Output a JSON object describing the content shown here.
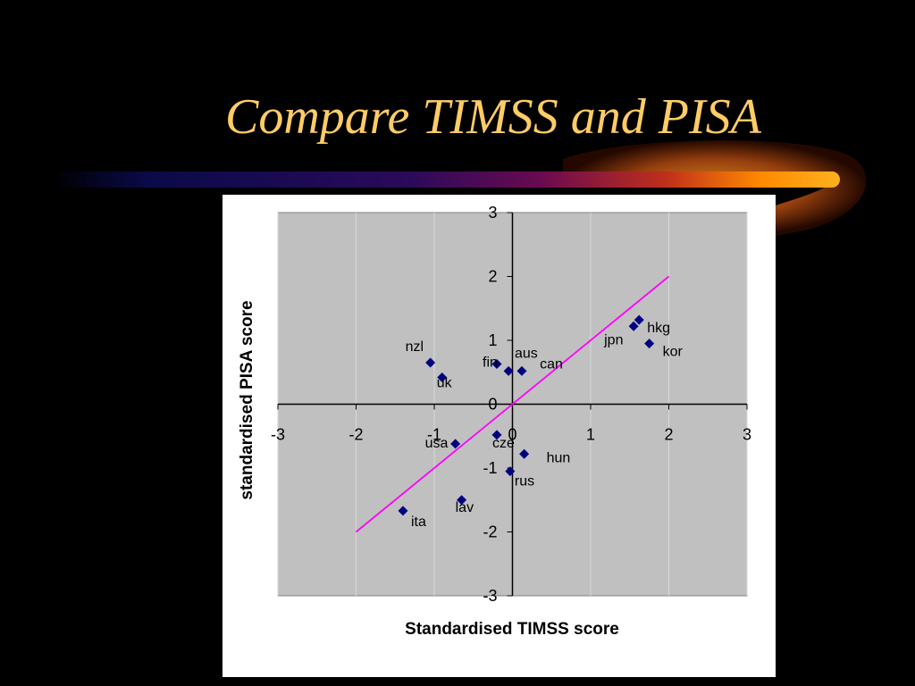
{
  "slide": {
    "title": "Compare TIMSS and PISA"
  },
  "colors": {
    "background": "#000000",
    "title": "#FFCC66",
    "plot_area": "#C0C0C0",
    "gridlines": "#D8D8D8",
    "points": "#000080",
    "reference_line": "#FF00FF"
  },
  "chart_data": {
    "type": "scatter",
    "xlabel": "Standardised TIMSS score",
    "ylabel": "standardised PISA score",
    "xlim": [
      -3,
      3
    ],
    "ylim": [
      -3,
      3
    ],
    "x_ticks": [
      "-3",
      "-2",
      "-1",
      "0",
      "1",
      "2",
      "3"
    ],
    "y_ticks": [
      "3",
      "2",
      "1",
      "0",
      "-1",
      "-2",
      "-3"
    ],
    "grid": true,
    "legend": "none",
    "reference_line": {
      "from": [
        -2,
        -2
      ],
      "to": [
        2,
        2
      ]
    },
    "points": [
      {
        "label": "hkg",
        "x": 1.62,
        "y": 1.32
      },
      {
        "label": "jpn",
        "x": 1.55,
        "y": 1.22
      },
      {
        "label": "kor",
        "x": 1.75,
        "y": 0.95
      },
      {
        "label": "aus",
        "x": 0.12,
        "y": 0.52
      },
      {
        "label": "can",
        "x": -0.05,
        "y": 0.52
      },
      {
        "label": "fin",
        "x": -0.2,
        "y": 0.63
      },
      {
        "label": "nzl",
        "x": -1.05,
        "y": 0.65
      },
      {
        "label": "uk",
        "x": -0.9,
        "y": 0.42
      },
      {
        "label": "cze",
        "x": -0.2,
        "y": -0.48
      },
      {
        "label": "usa",
        "x": -0.73,
        "y": -0.62
      },
      {
        "label": "hun",
        "x": 0.15,
        "y": -0.78
      },
      {
        "label": "rus",
        "x": -0.03,
        "y": -1.05
      },
      {
        "label": "lav",
        "x": -0.65,
        "y": -1.5
      },
      {
        "label": "ita",
        "x": -1.4,
        "y": -1.67
      }
    ]
  }
}
